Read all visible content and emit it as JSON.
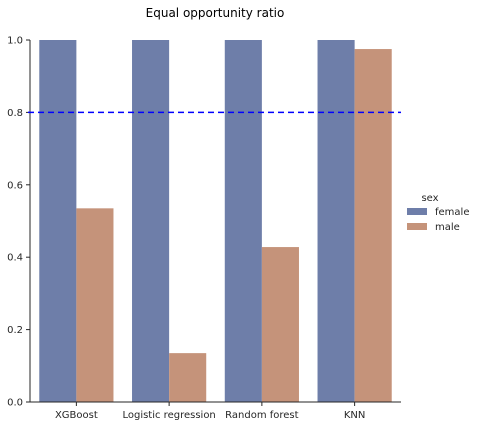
{
  "chart_data": {
    "type": "bar",
    "title": "Equal opportunity ratio",
    "xlabel": "",
    "ylabel": "",
    "categories": [
      "XGBoost",
      "Logistic regression",
      "Random forest",
      "KNN"
    ],
    "series": [
      {
        "name": "female",
        "color": "#6e7ea9",
        "values": [
          1.0,
          1.0,
          1.0,
          1.0
        ]
      },
      {
        "name": "male",
        "color": "#c5937a",
        "values": [
          0.535,
          0.135,
          0.428,
          0.975
        ]
      }
    ],
    "ylim": [
      0,
      1.0
    ],
    "yticks": [
      "0.0",
      "0.2",
      "0.4",
      "0.6",
      "0.8",
      "1.0"
    ],
    "reference_line": {
      "value": 0.8,
      "color": "#0000ff",
      "style": "dashed"
    },
    "legend": {
      "title": "sex",
      "placement": "right"
    },
    "grid": false
  }
}
